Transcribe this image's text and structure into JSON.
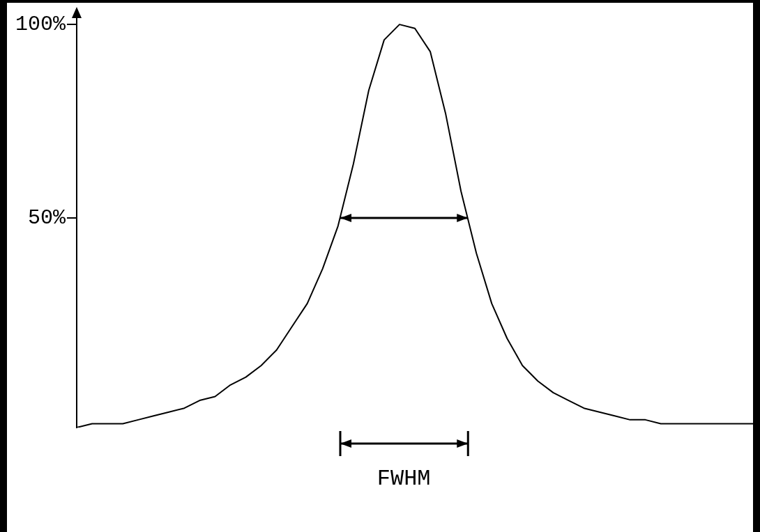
{
  "chart_data": {
    "type": "line",
    "categories": [
      null,
      null,
      null,
      null,
      null,
      null,
      null,
      null,
      null,
      null,
      null,
      null,
      null,
      null,
      null,
      null,
      null,
      null,
      null,
      null,
      null,
      null,
      null,
      null,
      null,
      null,
      null,
      null,
      null,
      null,
      null,
      null,
      null,
      null,
      null,
      null,
      null,
      null,
      null,
      null,
      null,
      null,
      null,
      null,
      null
    ],
    "series": [
      {
        "color": "#000000",
        "values": [
          -4,
          -3,
          -3,
          -3,
          -2,
          -1,
          0,
          1,
          3,
          4,
          7,
          9,
          12,
          16,
          22,
          28,
          37,
          48,
          64,
          83,
          96,
          100,
          99,
          93,
          77,
          57,
          41,
          28,
          19,
          12,
          8,
          5,
          3,
          1,
          0,
          -1,
          -2,
          -2,
          -3,
          -3,
          -3,
          -3,
          -3,
          -3,
          -3
        ]
      }
    ],
    "ylim": [
      -4,
      102
    ],
    "yticks": [
      {
        "value": 50,
        "label": "50%"
      },
      {
        "value": 100,
        "label": "100%"
      }
    ],
    "tick_labels": "y",
    "grid": false,
    "legend": false,
    "marker": "none",
    "line_style": "solid",
    "annotations": [
      "FWHM"
    ]
  }
}
